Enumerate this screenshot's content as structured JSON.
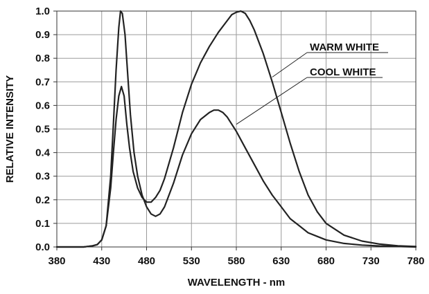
{
  "chart_data": {
    "type": "line",
    "title": "",
    "xlabel": "WAVELENGTH - nm",
    "ylabel": "RELATIVE INTENSITY",
    "xlim": [
      380,
      780
    ],
    "ylim": [
      0.0,
      1.0
    ],
    "grid": true,
    "legend": "none",
    "x_ticks": [
      "380",
      "430",
      "480",
      "530",
      "580",
      "630",
      "680",
      "730",
      "780"
    ],
    "y_ticks": [
      "0.0",
      "0.1",
      "0.2",
      "0.3",
      "0.4",
      "0.5",
      "0.6",
      "0.7",
      "0.8",
      "0.9",
      "1.0"
    ],
    "annotations": [
      {
        "text": "WARM WHITE",
        "target_x": 620,
        "target_y": 0.72
      },
      {
        "text": "COOL WHITE",
        "target_x": 580,
        "target_y": 0.52
      }
    ],
    "series": [
      {
        "name": "WARM WHITE",
        "color": "#222222",
        "x": [
          380,
          410,
          420,
          425,
          430,
          435,
          440,
          443,
          446,
          449,
          452,
          455,
          458,
          461,
          465,
          470,
          475,
          480,
          485,
          490,
          495,
          500,
          510,
          520,
          530,
          540,
          550,
          560,
          570,
          575,
          580,
          585,
          590,
          595,
          600,
          610,
          620,
          630,
          640,
          650,
          660,
          670,
          680,
          700,
          720,
          740,
          760,
          780
        ],
        "y": [
          0.0,
          0.0,
          0.005,
          0.01,
          0.03,
          0.09,
          0.25,
          0.4,
          0.54,
          0.64,
          0.68,
          0.64,
          0.52,
          0.42,
          0.32,
          0.25,
          0.21,
          0.19,
          0.19,
          0.21,
          0.24,
          0.29,
          0.42,
          0.57,
          0.69,
          0.78,
          0.85,
          0.91,
          0.96,
          0.985,
          0.995,
          1.0,
          0.99,
          0.96,
          0.92,
          0.82,
          0.7,
          0.57,
          0.44,
          0.32,
          0.22,
          0.15,
          0.1,
          0.05,
          0.025,
          0.012,
          0.005,
          0.002
        ]
      },
      {
        "name": "COOL WHITE",
        "color": "#222222",
        "x": [
          380,
          410,
          420,
          425,
          430,
          435,
          440,
          443,
          446,
          449,
          451,
          453,
          456,
          459,
          462,
          466,
          470,
          475,
          480,
          485,
          490,
          495,
          500,
          510,
          520,
          530,
          540,
          550,
          555,
          560,
          565,
          570,
          575,
          580,
          590,
          600,
          610,
          620,
          630,
          640,
          650,
          660,
          670,
          680,
          700,
          720,
          740,
          760,
          780
        ],
        "y": [
          0.0,
          0.0,
          0.005,
          0.01,
          0.03,
          0.09,
          0.3,
          0.52,
          0.75,
          0.93,
          1.0,
          0.99,
          0.9,
          0.73,
          0.56,
          0.4,
          0.3,
          0.22,
          0.17,
          0.14,
          0.13,
          0.14,
          0.17,
          0.27,
          0.39,
          0.48,
          0.54,
          0.57,
          0.58,
          0.58,
          0.57,
          0.55,
          0.52,
          0.49,
          0.42,
          0.35,
          0.28,
          0.22,
          0.17,
          0.12,
          0.09,
          0.06,
          0.045,
          0.03,
          0.015,
          0.008,
          0.004,
          0.002,
          0.0
        ]
      }
    ]
  }
}
